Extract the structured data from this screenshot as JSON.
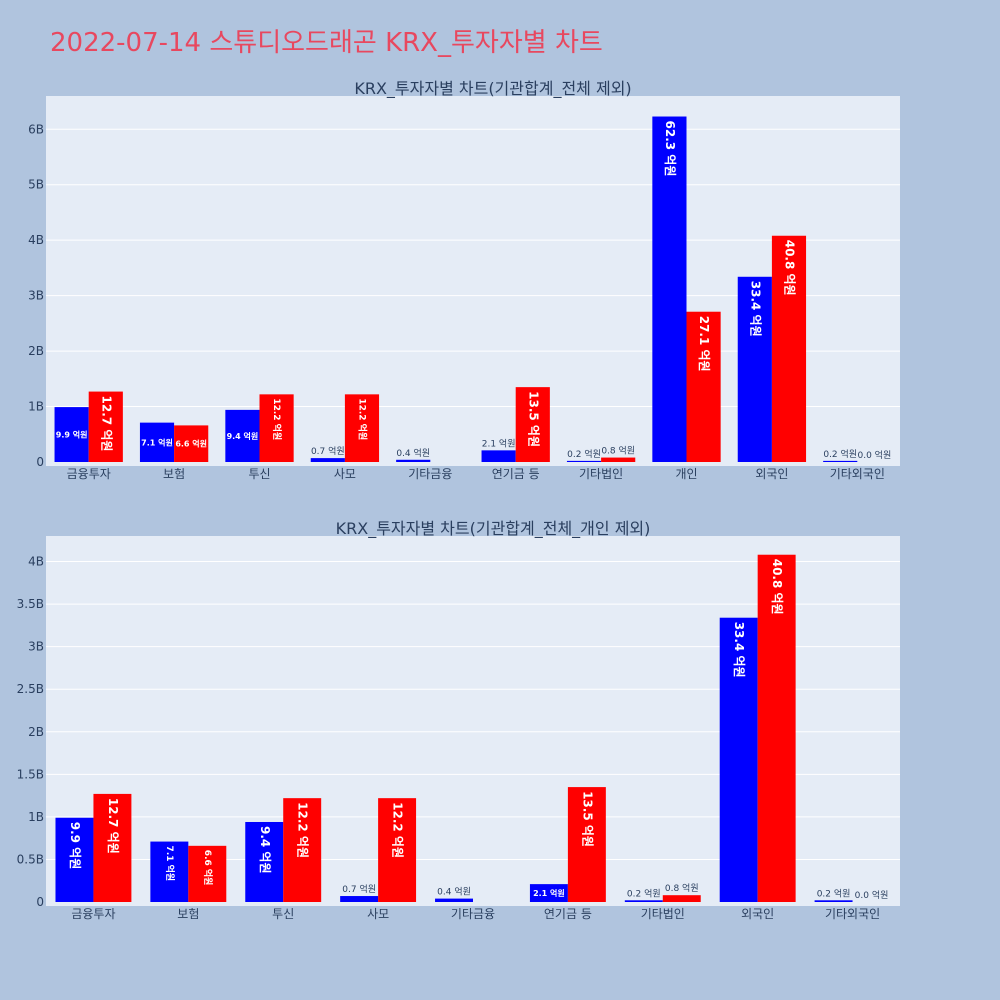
{
  "page_title": "2022-07-14 스튜디오드래곤 KRX_투자자별 차트",
  "colors": {
    "series_a": "#0000ff",
    "series_b": "#ff0000",
    "title": "#e8485f",
    "plot_bg": "#e5ecf6",
    "paper_bg": "#b0c4de"
  },
  "chart_data": [
    {
      "type": "bar",
      "title": "KRX_투자자별 차트(기관합계_전체 제외)",
      "categories": [
        "금융투자",
        "보험",
        "투신",
        "사모",
        "기타금융",
        "연기금 등",
        "기타법인",
        "개인",
        "외국인",
        "기타외국인"
      ],
      "ylim": [
        0,
        6.6
      ],
      "yticks": [
        0,
        1,
        2,
        3,
        4,
        5,
        6
      ],
      "ytick_labels": [
        "0",
        "1B",
        "2B",
        "3B",
        "4B",
        "5B",
        "6B"
      ],
      "grid": true,
      "series": [
        {
          "values": [
            0.99,
            0.71,
            0.94,
            0.07,
            0.04,
            0.21,
            0.02,
            6.23,
            3.34,
            0.02
          ],
          "labels": [
            "9.9 억원",
            "7.1 억원",
            "9.4 억원",
            "0.7 억원",
            "0.4 억원",
            "2.1 억원",
            "0.2 억원",
            "62.3 억원",
            "33.4 억원",
            "0.2 억원"
          ]
        },
        {
          "values": [
            1.27,
            0.66,
            1.22,
            1.22,
            0.0,
            1.35,
            0.08,
            2.71,
            4.08,
            0.0
          ],
          "labels": [
            "12.7 억원",
            "6.6 억원",
            "12.2 억원",
            "12.2 억원",
            "",
            "13.5 억원",
            "0.8 억원",
            "27.1 억원",
            "40.8 억원",
            "0.0 억원"
          ]
        }
      ]
    },
    {
      "type": "bar",
      "title": "KRX_투자자별 차트(기관합계_전체_개인 제외)",
      "categories": [
        "금융투자",
        "보험",
        "투신",
        "사모",
        "기타금융",
        "연기금 등",
        "기타법인",
        "외국인",
        "기타외국인"
      ],
      "ylim": [
        0,
        4.3
      ],
      "yticks": [
        0,
        0.5,
        1,
        1.5,
        2,
        2.5,
        3,
        3.5,
        4
      ],
      "ytick_labels": [
        "0",
        "0.5B",
        "1B",
        "1.5B",
        "2B",
        "2.5B",
        "3B",
        "3.5B",
        "4B"
      ],
      "grid": true,
      "series": [
        {
          "values": [
            0.99,
            0.71,
            0.94,
            0.07,
            0.04,
            0.21,
            0.02,
            3.34,
            0.02
          ],
          "labels": [
            "9.9 억원",
            "7.1 억원",
            "9.4 억원",
            "0.7 억원",
            "0.4 억원",
            "2.1 억원",
            "0.2 억원",
            "33.4 억원",
            "0.2 억원"
          ]
        },
        {
          "values": [
            1.27,
            0.66,
            1.22,
            1.22,
            0.0,
            1.35,
            0.08,
            4.08,
            0.0
          ],
          "labels": [
            "12.7 억원",
            "6.6 억원",
            "12.2 억원",
            "12.2 억원",
            "",
            "13.5 억원",
            "0.8 억원",
            "40.8 억원",
            "0.0 억원"
          ]
        }
      ]
    }
  ]
}
